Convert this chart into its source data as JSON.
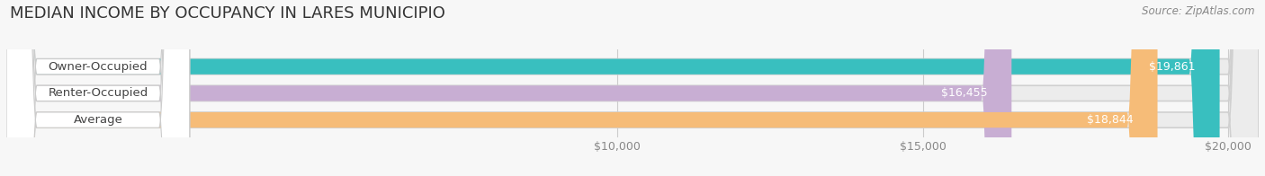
{
  "title": "MEDIAN INCOME BY OCCUPANCY IN LARES MUNICIPIO",
  "source": "Source: ZipAtlas.com",
  "categories": [
    "Owner-Occupied",
    "Renter-Occupied",
    "Average"
  ],
  "values": [
    19861,
    16455,
    18844
  ],
  "value_labels": [
    "$19,861",
    "$16,455",
    "$18,844"
  ],
  "bar_colors": [
    "#39bfbf",
    "#c8aed3",
    "#f6bc78"
  ],
  "bar_bg_colors": [
    "#ebebeb",
    "#ebebeb",
    "#ebebeb"
  ],
  "label_bg_colors": [
    "#ffffff",
    "#ffffff",
    "#ffffff"
  ],
  "xlim_data": [
    0,
    20500
  ],
  "xlim_display": [
    0,
    20500
  ],
  "xticks": [
    10000,
    15000,
    20000
  ],
  "xtick_labels": [
    "$10,000",
    "$15,000",
    "$20,000"
  ],
  "background_color": "#f7f7f7",
  "bar_height": 0.58,
  "title_fontsize": 13,
  "label_fontsize": 9.5,
  "tick_fontsize": 9,
  "value_fontsize": 9
}
